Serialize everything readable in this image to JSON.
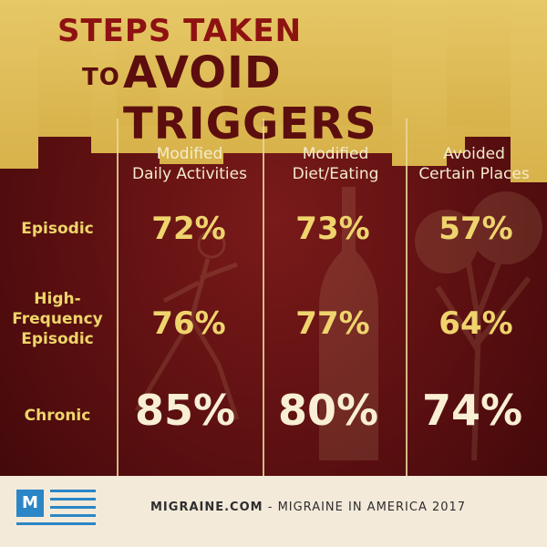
{
  "title": {
    "line1": "Steps Taken",
    "line2_small": "to",
    "line2_big": "Avoid Triggers"
  },
  "columns": [
    {
      "label_line1": "Modified",
      "label_line2": "Daily Activities"
    },
    {
      "label_line1": "Modified",
      "label_line2": "Diet/Eating"
    },
    {
      "label_line1": "Avoided",
      "label_line2": "Certain Places"
    }
  ],
  "rows": [
    {
      "label_lines": [
        "Episodic"
      ],
      "values": [
        "72%",
        "73%",
        "57%"
      ]
    },
    {
      "label_lines": [
        "High-",
        "Frequency",
        "Episodic"
      ],
      "values": [
        "76%",
        "77%",
        "64%"
      ]
    },
    {
      "label_lines": [
        "Chronic"
      ],
      "values": [
        "85%",
        "80%",
        "74%"
      ]
    }
  ],
  "footer": {
    "logo_letter": "M",
    "brand": "MIGRAINE.COM",
    "separator": " - ",
    "tagline": "MIGRAINE IN AMERICA 2017"
  },
  "colors": {
    "gold": "#e6c867",
    "maroon": "#5a0f10",
    "value_gold": "#efd46d",
    "value_cream": "#f8efd4",
    "logo_blue": "#2a86c6"
  },
  "chart_data": {
    "type": "table",
    "title": "Steps Taken to Avoid Triggers",
    "columns": [
      "Modified Daily Activities",
      "Modified Diet/Eating",
      "Avoided Certain Places"
    ],
    "row_labels": [
      "Episodic",
      "High-Frequency Episodic",
      "Chronic"
    ],
    "series": [
      {
        "name": "Episodic",
        "values": [
          72,
          73,
          57
        ]
      },
      {
        "name": "High-Frequency Episodic",
        "values": [
          76,
          77,
          64
        ]
      },
      {
        "name": "Chronic",
        "values": [
          85,
          80,
          74
        ]
      }
    ],
    "unit": "%"
  }
}
